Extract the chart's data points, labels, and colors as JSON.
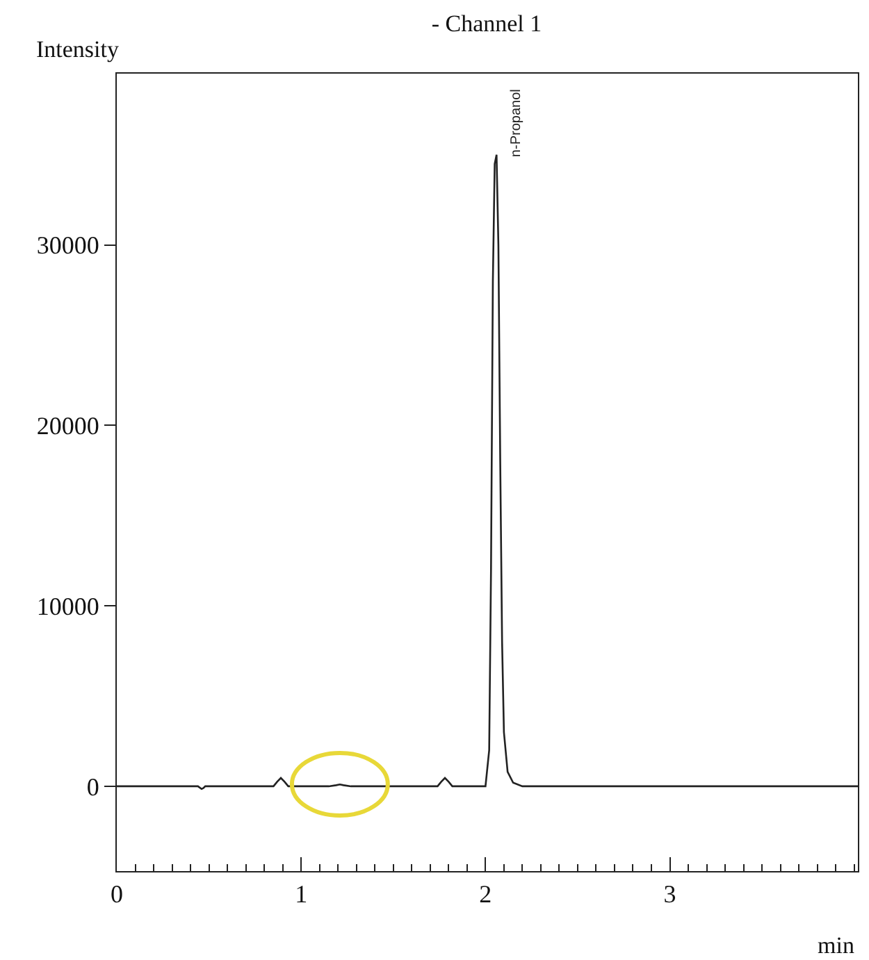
{
  "chart_data": {
    "type": "line",
    "title": "- Channel 1",
    "xlabel": "min",
    "ylabel": "Intensity",
    "x": [
      0,
      0.3,
      0.44,
      0.46,
      0.47,
      0.48,
      0.5,
      0.8,
      0.85,
      0.87,
      0.89,
      0.91,
      0.93,
      0.97,
      1.15,
      1.19,
      1.21,
      1.23,
      1.27,
      1.7,
      1.74,
      1.76,
      1.78,
      1.8,
      1.82,
      1.86,
      2.0,
      2.02,
      2.03,
      2.04,
      2.05,
      2.06,
      2.07,
      2.08,
      2.09,
      2.1,
      2.12,
      2.15,
      2.2,
      2.5,
      3.0,
      3.5,
      4.02
    ],
    "series": [
      {
        "color": "#222222",
        "values": [
          0,
          0,
          0,
          -150,
          -100,
          0,
          0,
          0,
          0,
          250,
          460,
          250,
          0,
          0,
          0,
          60,
          100,
          60,
          0,
          0,
          0,
          250,
          460,
          250,
          0,
          0,
          0,
          2000,
          12000,
          28000,
          34500,
          35000,
          30000,
          18000,
          8000,
          3000,
          800,
          200,
          0,
          0,
          0,
          0,
          0
        ]
      }
    ],
    "xlim": [
      0,
      4.02
    ],
    "ylim": [
      -4700,
      39500
    ],
    "xticks": [
      0,
      1,
      2,
      3
    ],
    "yticks": [
      0,
      10000,
      20000,
      30000
    ],
    "grid": false,
    "marker": "none",
    "line_style": "solid",
    "annotations": [
      {
        "text": "n-Propanol",
        "x": 2.06,
        "y": 35000
      }
    ]
  }
}
